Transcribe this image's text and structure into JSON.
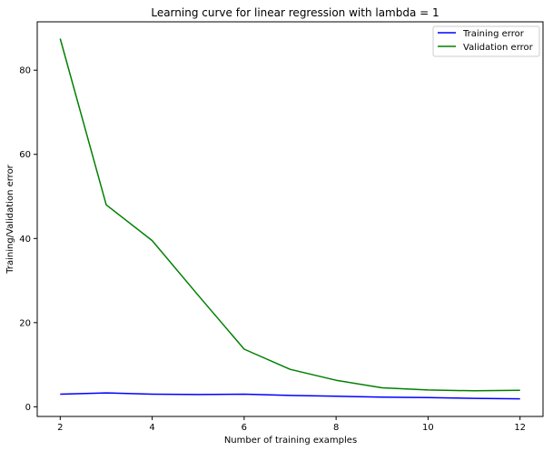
{
  "chart_data": {
    "type": "line",
    "title": "Learning curve for linear regression with lambda = 1",
    "xlabel": "Number of training examples",
    "ylabel": "Training/Validation error",
    "xlim": [
      1.5,
      12.5
    ],
    "ylim": [
      -2.3,
      91.5
    ],
    "xticks": [
      2,
      4,
      6,
      8,
      10,
      12
    ],
    "yticks": [
      0,
      20,
      40,
      60,
      80
    ],
    "grid": false,
    "legend_position": "top-right",
    "x": [
      2,
      3,
      4,
      5,
      6,
      7,
      8,
      9,
      10,
      11,
      12
    ],
    "series": [
      {
        "name": "Training error",
        "color": "#0000ff",
        "values": [
          3.0,
          3.3,
          3.0,
          2.9,
          3.0,
          2.7,
          2.5,
          2.3,
          2.2,
          2.0,
          1.9
        ]
      },
      {
        "name": "Validation error",
        "color": "#008000",
        "values": [
          87.5,
          48.0,
          39.5,
          26.5,
          13.7,
          8.9,
          6.3,
          4.5,
          4.0,
          3.8,
          3.9
        ]
      }
    ]
  }
}
